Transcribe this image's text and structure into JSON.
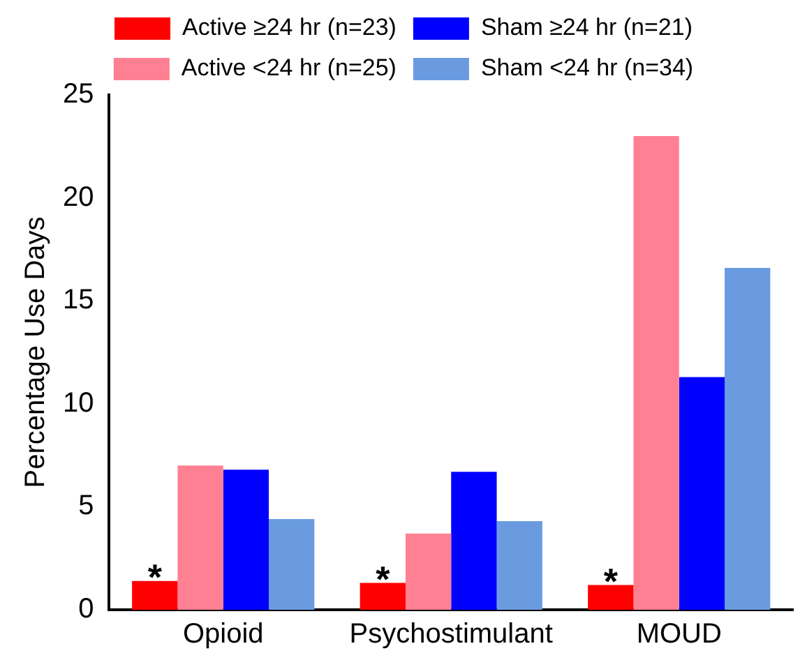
{
  "chart_data": {
    "type": "bar",
    "ylabel": "Percentage Use Days",
    "categories": [
      "Opioid",
      "Psychostimulant",
      "MOUD"
    ],
    "series": [
      {
        "name": "Active ≥24 hr (n=23)",
        "color": "#ff0000",
        "values": [
          1.4,
          1.3,
          1.2
        ]
      },
      {
        "name": "Active <24 hr (n=25)",
        "color": "#ff8092",
        "values": [
          7.0,
          3.7,
          23.0
        ]
      },
      {
        "name": "Sham ≥24 hr (n=21)",
        "color": "#0000ff",
        "values": [
          6.8,
          6.7,
          11.3
        ]
      },
      {
        "name": "Sham <24 hr (n=34)",
        "color": "#6a9be0",
        "values": [
          4.4,
          4.3,
          16.6
        ]
      }
    ],
    "ylim": [
      0,
      25
    ],
    "yticks": [
      0,
      5,
      10,
      15,
      20,
      25
    ],
    "grid": false,
    "legend": "top",
    "annotations": [
      {
        "text": "*",
        "x": "Opioid",
        "y": 1.4
      },
      {
        "text": "*",
        "x": "Psychostimulant",
        "y": 1.3
      },
      {
        "text": "*",
        "x": "MOUD",
        "y": 1.2
      }
    ]
  }
}
